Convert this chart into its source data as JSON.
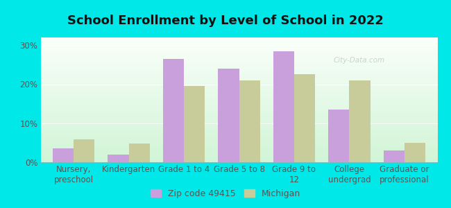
{
  "title": "School Enrollment by Level of School in 2022",
  "categories": [
    "Nursery,\npreschool",
    "Kindergarten",
    "Grade 1 to 4",
    "Grade 5 to 8",
    "Grade 9 to\n12",
    "College\nundergrad",
    "Graduate or\nprofessional"
  ],
  "zip_values": [
    3.5,
    2.0,
    26.5,
    24.0,
    28.5,
    13.5,
    3.0
  ],
  "michigan_values": [
    5.8,
    4.8,
    19.5,
    21.0,
    22.5,
    21.0,
    5.0
  ],
  "zip_color": "#c9a0dc",
  "michigan_color": "#c8cc9a",
  "background_outer": "#00e8e8",
  "background_inner": "#eafaea",
  "grid_color": "#d0e8d0",
  "ylim": [
    0,
    32
  ],
  "yticks": [
    0,
    10,
    20,
    30
  ],
  "ytick_labels": [
    "0%",
    "10%",
    "20%",
    "30%"
  ],
  "legend_zip_label": "Zip code 49415",
  "legend_michigan_label": "Michigan",
  "title_fontsize": 13,
  "tick_fontsize": 8.5,
  "legend_fontsize": 9,
  "bar_width": 0.38
}
